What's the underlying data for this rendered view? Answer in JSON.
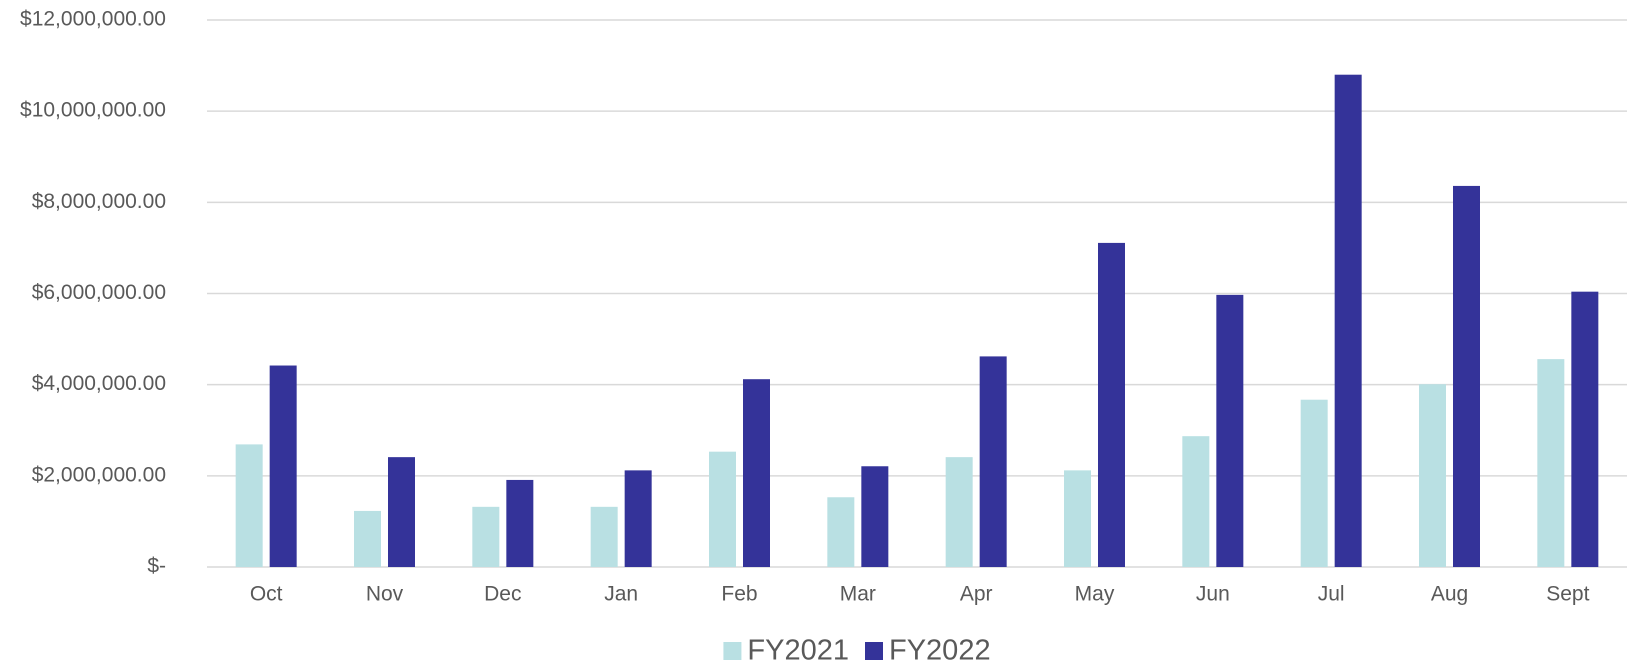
{
  "chart_data": {
    "type": "bar",
    "categories": [
      "Oct",
      "Nov",
      "Dec",
      "Jan",
      "Feb",
      "Mar",
      "Apr",
      "May",
      "Jun",
      "Jul",
      "Aug",
      "Sept"
    ],
    "series": [
      {
        "name": "FY2021",
        "color": "#b9e0e3",
        "values": [
          2690000,
          1230000,
          1320000,
          1320000,
          2530000,
          1530000,
          2410000,
          2120000,
          2870000,
          3670000,
          4010000,
          4560000
        ]
      },
      {
        "name": "FY2022",
        "color": "#343399",
        "values": [
          4420000,
          2410000,
          1910000,
          2120000,
          4120000,
          2210000,
          4620000,
          7110000,
          5970000,
          10800000,
          8360000,
          6040000
        ]
      }
    ],
    "ylim": [
      0,
      12000000
    ],
    "yticks": [
      {
        "value": 0,
        "label": "$-"
      },
      {
        "value": 2000000,
        "label": "$2,000,000.00"
      },
      {
        "value": 4000000,
        "label": "$4,000,000.00"
      },
      {
        "value": 6000000,
        "label": "$6,000,000.00"
      },
      {
        "value": 8000000,
        "label": "$8,000,000.00"
      },
      {
        "value": 10000000,
        "label": "$10,000,000.00"
      },
      {
        "value": 12000000,
        "label": "$12,000,000.00"
      }
    ],
    "grid": true,
    "legend": "bottom"
  }
}
